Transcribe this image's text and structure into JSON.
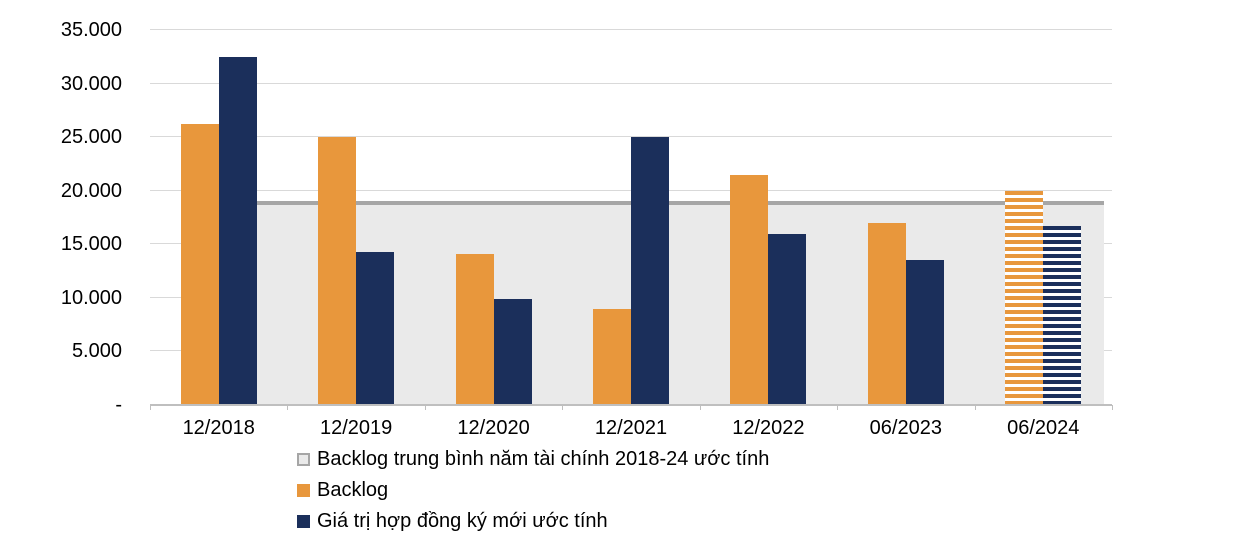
{
  "chart_data": {
    "type": "bar",
    "categories": [
      "12/2018",
      "12/2019",
      "12/2020",
      "12/2021",
      "12/2022",
      "06/2023",
      "06/2024"
    ],
    "series": [
      {
        "name": "Backlog",
        "color": "#E8973C",
        "values": [
          26200,
          25000,
          14100,
          9000,
          21500,
          17000,
          20000
        ],
        "hatched_last": true
      },
      {
        "name": "Giá trị hợp đồng ký mới ước tính",
        "color": "#1B2F5B",
        "values": [
          32500,
          14300,
          9900,
          25000,
          16000,
          13500,
          16700
        ],
        "hatched_last": true
      }
    ],
    "average_band": {
      "name": "Backlog trung bình năm tài chính 2018-24 ước tính",
      "value": 19000,
      "line_color": "#A6A6A6",
      "fill_color": "#EAEAEA"
    },
    "ylim": [
      0,
      35000
    ],
    "ytick_step": 5000,
    "ytick_labels": [
      "-",
      "5.000",
      "10.000",
      "15.000",
      "20.000",
      "25.000",
      "30.000",
      "35.000"
    ],
    "xlabel": "",
    "ylabel": "",
    "grid": true,
    "legend_position": "bottom",
    "legend": [
      {
        "label": "Backlog trung bình năm tài chính 2018-24 ước tính",
        "color": "#A6A6A6",
        "style": "band"
      },
      {
        "label": "Backlog",
        "color": "#E8973C",
        "style": "solid"
      },
      {
        "label": "Giá trị hợp đồng ký mới ước tính",
        "color": "#1B2F5B",
        "style": "solid"
      }
    ]
  }
}
